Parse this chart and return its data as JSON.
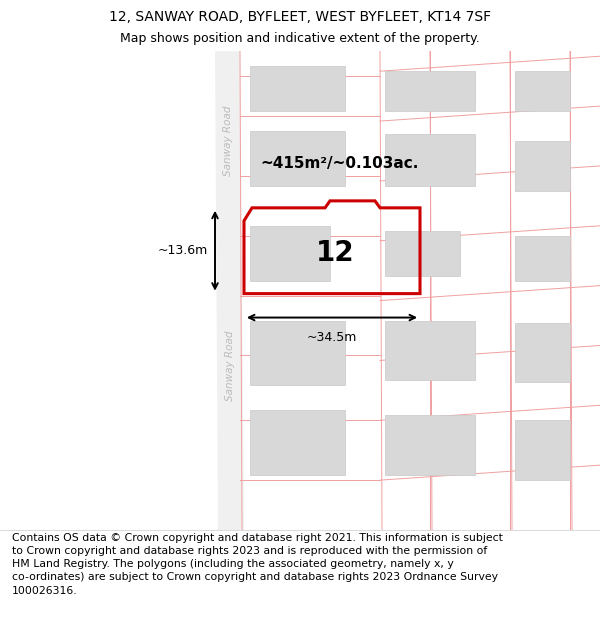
{
  "title": "12, SANWAY ROAD, BYFLEET, WEST BYFLEET, KT14 7SF",
  "subtitle": "Map shows position and indicative extent of the property.",
  "footer": "Contains OS data © Crown copyright and database right 2021. This information is subject\nto Crown copyright and database rights 2023 and is reproduced with the permission of\nHM Land Registry. The polygons (including the associated geometry, namely x, y\nco-ordinates) are subject to Crown copyright and database rights 2023 Ordnance Survey\n100026316.",
  "bg_color": "#ffffff",
  "road_label": "Sanway Road",
  "property_number": "12",
  "area_label": "~415m²/~0.103ac.",
  "dim_width": "~34.5m",
  "dim_height": "~13.6m",
  "title_fontsize": 10,
  "subtitle_fontsize": 9,
  "footer_fontsize": 7.8,
  "grid_color": "#f0a0a0",
  "building_color": "#d8d8d8",
  "road_color": "#f0f0f0",
  "road_text_color": "#bbbbbb",
  "property_edge_color": "#cc0000",
  "dim_color": "#000000",
  "text_color": "#000000"
}
